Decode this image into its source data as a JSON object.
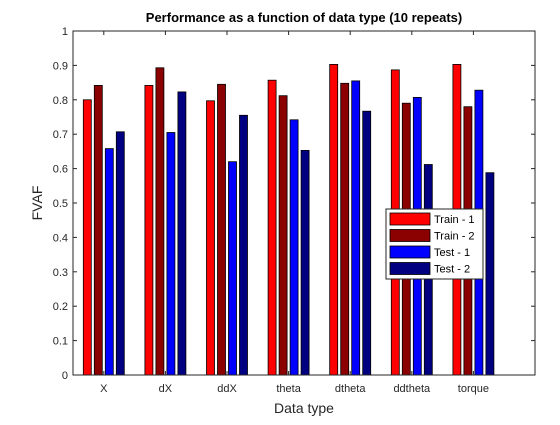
{
  "chart_data": {
    "type": "bar",
    "title": "Performance as a function of data type (10 repeats)",
    "xlabel": "Data type",
    "ylabel": "FVAF",
    "categories": [
      "X",
      "dX",
      "ddX",
      "theta",
      "dtheta",
      "ddtheta",
      "torque"
    ],
    "ylim": [
      0,
      1
    ],
    "yticks": [
      "0",
      "0.1",
      "0.2",
      "0.3",
      "0.4",
      "0.5",
      "0.6",
      "0.7",
      "0.8",
      "0.9",
      "1"
    ],
    "grid": false,
    "legend_position": "right",
    "series": [
      {
        "name": "Train - 1",
        "color": "#ff0000",
        "values": [
          0.8,
          0.842,
          0.797,
          0.857,
          0.903,
          0.887,
          0.903
        ]
      },
      {
        "name": "Train - 2",
        "color": "#8b0000",
        "values": [
          0.842,
          0.893,
          0.845,
          0.812,
          0.848,
          0.79,
          0.78
        ]
      },
      {
        "name": "Test - 1",
        "color": "#0000ff",
        "values": [
          0.658,
          0.705,
          0.62,
          0.742,
          0.855,
          0.807,
          0.828
        ]
      },
      {
        "name": "Test - 2",
        "color": "#000080",
        "values": [
          0.707,
          0.823,
          0.755,
          0.653,
          0.767,
          0.612,
          0.588
        ]
      }
    ]
  }
}
